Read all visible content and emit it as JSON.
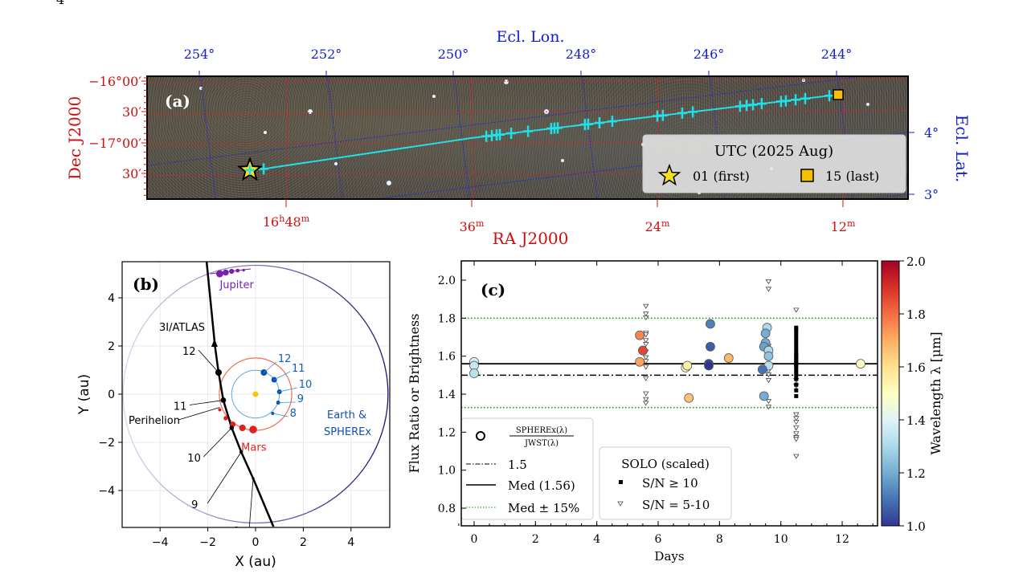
{
  "page_number": "4",
  "panel_a": {
    "label": "(a)",
    "top_axis_title": "Ecl. Lon.",
    "top_ticks": [
      "254°",
      "252°",
      "250°",
      "248°",
      "246°",
      "244°"
    ],
    "left_axis_title": "Dec J2000",
    "left_ticks": [
      "−16°00′",
      "30′",
      "−17°00′",
      "30′"
    ],
    "right_axis_title": "Ecl. Lat.",
    "right_ticks": [
      "4°",
      "3°"
    ],
    "bottom_axis_title": "RA J2000",
    "bottom_ticks": [
      {
        "h": "16",
        "hs": "h",
        "m": "48",
        "ms": "m"
      },
      {
        "h": "",
        "hs": "",
        "m": "36",
        "ms": "m"
      },
      {
        "h": "",
        "hs": "",
        "m": "24",
        "ms": "m"
      },
      {
        "h": "",
        "hs": "",
        "m": "12",
        "ms": "m"
      }
    ],
    "legend": {
      "title": "UTC (2025 Aug)",
      "first": "01 (first)",
      "last": "15 (last)"
    },
    "track_color": "#20e0e8",
    "track_ra_min_after_16h": [
      49.45,
      35.06,
      34.7,
      34.39,
      34.18,
      33.45,
      32.36,
      30.86,
      30.65,
      30.44,
      28.68,
      28.47,
      27.74,
      26.91,
      24.0,
      23.64,
      22.39,
      21.71,
      18.65,
      18.23,
      17.82,
      17.25,
      16.0,
      15.69,
      15.06,
      14.44,
      12.88,
      12.31
    ],
    "track_line": [
      [
        50.34,
        -17.44
      ],
      [
        49.45,
        -17.42
      ],
      [
        36.0,
        -16.92
      ],
      [
        12.31,
        -16.22
      ]
    ],
    "first_marker": [
      50.34,
      -17.44
    ],
    "last_marker": [
      12.31,
      -16.22
    ]
  },
  "panel_b": {
    "label": "(b)",
    "xlabel": "X (au)",
    "ylabel": "Y (au)",
    "xticks": [
      "−4",
      "−2",
      "0",
      "2",
      "4"
    ],
    "yticks": [
      "4",
      "2",
      "0",
      "−2",
      "−4"
    ],
    "labels": {
      "jupiter": "Jupiter",
      "atlas": "3I/ATLAS",
      "perihelion": "Perihelion",
      "mars": "Mars",
      "earth1": "Earth &",
      "earth2": "SPHEREx"
    },
    "atlas_track": [
      [
        -2.05,
        5.5
      ],
      [
        -1.85,
        3.5
      ],
      [
        -1.7,
        2.0
      ],
      [
        -1.55,
        0.9
      ],
      [
        -1.35,
        -0.25
      ],
      [
        -1.0,
        -1.4
      ],
      [
        -0.6,
        -2.4
      ],
      [
        -0.1,
        -3.5
      ],
      [
        0.75,
        -5.5
      ]
    ],
    "atlas_dates": [
      {
        "d": "12",
        "p": [
          -1.55,
          0.9
        ]
      },
      {
        "d": "11",
        "p": [
          -1.35,
          -0.25
        ]
      },
      {
        "d": "10",
        "p": [
          -1.0,
          -1.4
        ]
      },
      {
        "d": "9",
        "p": [
          -0.6,
          -2.4
        ]
      },
      {
        "d": "8",
        "p": [
          -0.1,
          -3.5
        ]
      }
    ],
    "earth_dates": [
      {
        "d": "12",
        "p": [
          0.35,
          0.9
        ]
      },
      {
        "d": "11",
        "p": [
          0.78,
          0.6
        ]
      },
      {
        "d": "10",
        "p": [
          1.0,
          0.1
        ]
      },
      {
        "d": "9",
        "p": [
          0.95,
          -0.35
        ]
      },
      {
        "d": "8",
        "p": [
          0.72,
          -0.8
        ]
      }
    ],
    "mars_points": [
      [
        -1.5,
        -0.65
      ],
      [
        -1.25,
        -1.0
      ],
      [
        -0.95,
        -1.25
      ],
      [
        -0.55,
        -1.4
      ],
      [
        -0.1,
        -1.47
      ]
    ],
    "jupiter_points": [
      [
        -1.5,
        5.0
      ],
      [
        -1.25,
        5.05
      ],
      [
        -1.0,
        5.1
      ],
      [
        -0.75,
        5.13
      ],
      [
        -0.5,
        5.15
      ]
    ],
    "colors": {
      "jupiter": "#7a20b0",
      "mars": "#e02020",
      "earth": "#0a50b0",
      "sun": "#f5c800"
    }
  },
  "panel_c": {
    "label": "(c)",
    "chart_data": {
      "type": "scatter",
      "xlabel": "Days",
      "ylabel": "Flux Ratio or Brightness",
      "xlim": [
        -0.5,
        13.2
      ],
      "ylim": [
        0.7,
        2.1
      ],
      "xticks": [
        "0",
        "2",
        "4",
        "6",
        "8",
        "10",
        "12"
      ],
      "yticks": [
        "0.8",
        "1.0",
        "1.2",
        "1.4",
        "1.6",
        "1.8",
        "2.0"
      ],
      "hlines": {
        "ref": 1.5,
        "median": 1.56,
        "upper": 1.8,
        "lower": 1.33
      },
      "colorbar": {
        "label": "Wavelength λ [μm]",
        "range": [
          1.0,
          2.0
        ],
        "ticks": [
          "1.0",
          "1.2",
          "1.4",
          "1.6",
          "1.8",
          "2.0"
        ],
        "cmap": "RdYlBu_r"
      },
      "spherex_ratio": [
        {
          "x": 0.0,
          "y": 1.57,
          "lam": 1.38
        },
        {
          "x": 0.0,
          "y": 1.55,
          "lam": 1.35
        },
        {
          "x": 0.0,
          "y": 1.51,
          "lam": 1.33
        },
        {
          "x": 5.4,
          "y": 1.71,
          "lam": 1.76
        },
        {
          "x": 5.5,
          "y": 1.63,
          "lam": 1.86
        },
        {
          "x": 5.4,
          "y": 1.57,
          "lam": 1.72
        },
        {
          "x": 6.9,
          "y": 1.54,
          "lam": 1.5
        },
        {
          "x": 6.95,
          "y": 1.55,
          "lam": 1.55
        },
        {
          "x": 7.0,
          "y": 1.38,
          "lam": 1.66
        },
        {
          "x": 7.7,
          "y": 1.77,
          "lam": 1.12
        },
        {
          "x": 7.7,
          "y": 1.65,
          "lam": 1.06
        },
        {
          "x": 7.65,
          "y": 1.56,
          "lam": 1.02
        },
        {
          "x": 7.65,
          "y": 1.55,
          "lam": 1.0
        },
        {
          "x": 8.3,
          "y": 1.59,
          "lam": 1.68
        },
        {
          "x": 9.55,
          "y": 1.75,
          "lam": 1.3
        },
        {
          "x": 9.5,
          "y": 1.72,
          "lam": 1.2
        },
        {
          "x": 9.5,
          "y": 1.67,
          "lam": 1.2
        },
        {
          "x": 9.45,
          "y": 1.65,
          "lam": 1.18
        },
        {
          "x": 9.6,
          "y": 1.63,
          "lam": 1.3
        },
        {
          "x": 9.6,
          "y": 1.6,
          "lam": 1.25
        },
        {
          "x": 9.6,
          "y": 1.55,
          "lam": 1.32
        },
        {
          "x": 9.4,
          "y": 1.53,
          "lam": 1.1
        },
        {
          "x": 9.45,
          "y": 1.39,
          "lam": 1.2
        },
        {
          "x": 12.6,
          "y": 1.56,
          "lam": 1.5
        }
      ],
      "solo_high_sn": {
        "x": 10.5,
        "y": [
          1.39,
          1.42,
          1.45,
          1.48,
          1.5,
          1.52,
          1.54,
          1.55,
          1.56,
          1.57,
          1.58,
          1.59,
          1.6,
          1.61,
          1.62,
          1.64,
          1.66,
          1.68,
          1.7,
          1.72,
          1.74,
          1.75
        ]
      },
      "solo_low_sn": [
        {
          "x": 5.6,
          "y": [
            1.86,
            1.82,
            1.8,
            1.72,
            1.71,
            1.68,
            1.66,
            1.62,
            1.59,
            1.57,
            1.54,
            1.48,
            1.4,
            1.37,
            1.35
          ]
        },
        {
          "x": 9.6,
          "y": [
            1.99,
            1.95,
            1.73,
            1.65,
            1.6,
            1.55,
            1.52,
            1.5,
            1.47,
            1.36,
            1.33
          ]
        },
        {
          "x": 10.5,
          "y": [
            1.84,
            1.47,
            1.44,
            1.29,
            1.27,
            1.25,
            1.22,
            1.19,
            1.17,
            1.16,
            1.07
          ]
        }
      ],
      "legend1": {
        "ratio_num": "SPHEREx(λ)",
        "ratio_den": "JWST(λ)",
        "ref": "1.5",
        "median": "Med (1.56)",
        "band": "Med ± 15%"
      },
      "legend2": {
        "title": "SOLO (scaled)",
        "high": "S/N ≥ 10",
        "low": "S/N = 5-10"
      }
    }
  }
}
